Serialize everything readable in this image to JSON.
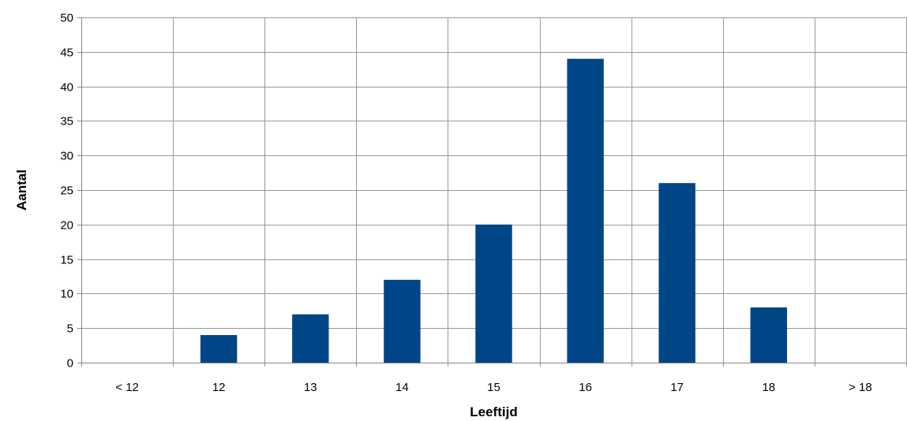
{
  "chart_data": {
    "type": "bar",
    "title": "",
    "xlabel": "Leeftijd",
    "ylabel": "Aantal",
    "categories": [
      "< 12",
      "12",
      "13",
      "14",
      "15",
      "16",
      "17",
      "18",
      "> 18"
    ],
    "values": [
      0,
      4,
      7,
      12,
      20,
      44,
      26,
      8,
      0
    ],
    "ylim": [
      0,
      50
    ],
    "yticks": [
      0,
      5,
      10,
      15,
      20,
      25,
      30,
      35,
      40,
      45,
      50
    ],
    "grid": "both",
    "legend": "none",
    "colors": {
      "bar": "#004586",
      "grid": "#999999",
      "axis": "#888888"
    }
  }
}
